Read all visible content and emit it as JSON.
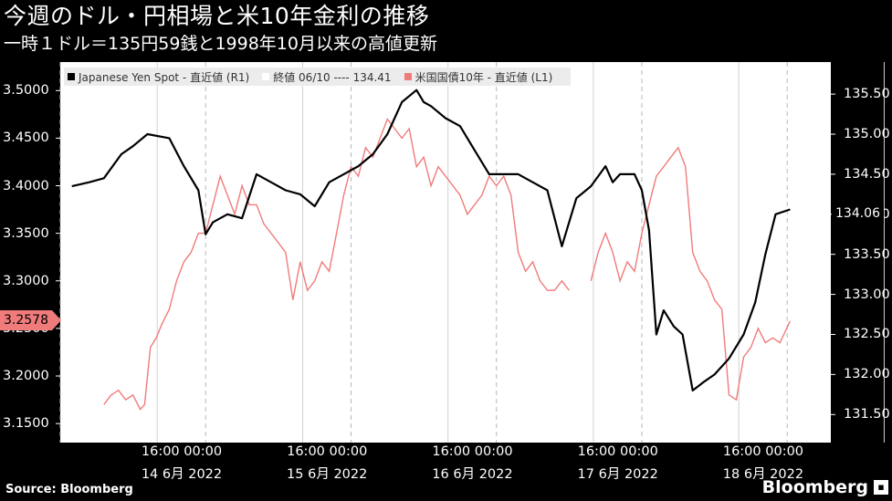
{
  "title": "今週のドル・円相場と米10年金利の推移",
  "subtitle": "一時１ドル＝135円59銭と1998年10月以来の高値更新",
  "legend": {
    "item1": "Japanese Yen Spot - 直近値 (R1)",
    "item2": "終値 06/10 ---- 134.41",
    "item3": "米国国債10年 - 直近値 (L1)"
  },
  "source": "Source:  Bloomberg",
  "brand": "Bloomberg",
  "colors": {
    "yen": "#000000",
    "yield": "#f07b7b",
    "background": "#000000",
    "plot": "#ffffff"
  },
  "chart_data": {
    "type": "line",
    "title": "今週のドル・円相場と米10年金利の推移",
    "left_axis": {
      "ylim": [
        3.13,
        3.53
      ],
      "ticks": [
        "3.5000",
        "3.4500",
        "3.4000",
        "3.3500",
        "3.3000",
        "3.2500",
        "3.2000",
        "3.1500"
      ]
    },
    "right_axis": {
      "ylim": [
        131.15,
        135.9
      ],
      "ticks": [
        "135.50",
        "135.00",
        "134.50",
        "134.00",
        "133.50",
        "133.00",
        "132.50",
        "132.00",
        "131.50"
      ]
    },
    "x_day_labels": [
      {
        "time1": "16:00",
        "time2": "00:00",
        "date": "14 6月 2022"
      },
      {
        "time1": "16:00",
        "time2": "00:00",
        "date": "15 6月 2022"
      },
      {
        "time1": "16:00",
        "time2": "00:00",
        "date": "16 6月 2022"
      },
      {
        "time1": "16:00",
        "time2": "00:00",
        "date": "17 6月 2022"
      },
      {
        "time1": "16:00",
        "time2": "00:00",
        "date": "18 6月 2022"
      }
    ],
    "x_range_days": [
      0,
      5.3
    ],
    "grid": true,
    "legend_position": "top-left",
    "last_values": {
      "yield": "3.2578",
      "yen": "134.06"
    },
    "series": [
      {
        "name": "Japanese Yen Spot - 直近値 (R1)",
        "axis": "right",
        "x": [
          0.08,
          0.2,
          0.3,
          0.42,
          0.5,
          0.6,
          0.75,
          0.85,
          0.95,
          1.0,
          1.05,
          1.15,
          1.25,
          1.35,
          1.45,
          1.55,
          1.65,
          1.75,
          1.85,
          1.95,
          2.05,
          2.15,
          2.25,
          2.35,
          2.45,
          2.5,
          2.55,
          2.65,
          2.75,
          2.85,
          2.95,
          3.05,
          3.15,
          3.25,
          3.35,
          3.45,
          3.55,
          3.65,
          3.75,
          3.8,
          3.85,
          3.95,
          4.0,
          4.05,
          4.1,
          4.15,
          4.22,
          4.28,
          4.35,
          4.42,
          4.5,
          4.6,
          4.7,
          4.78,
          4.85,
          4.92,
          5.02
        ],
        "values": [
          134.35,
          134.4,
          134.45,
          134.75,
          134.85,
          135.0,
          134.95,
          134.6,
          134.3,
          133.75,
          133.9,
          134.0,
          133.95,
          134.5,
          134.4,
          134.3,
          134.25,
          134.1,
          134.4,
          134.5,
          134.6,
          134.75,
          135.0,
          135.4,
          135.55,
          135.4,
          135.35,
          135.2,
          135.1,
          134.8,
          134.5,
          134.5,
          134.5,
          134.4,
          134.3,
          133.6,
          134.2,
          134.35,
          134.6,
          134.4,
          134.5,
          134.5,
          134.3,
          133.8,
          132.5,
          132.8,
          132.6,
          132.5,
          131.8,
          131.9,
          132.0,
          132.2,
          132.5,
          132.9,
          133.5,
          134.0,
          134.06
        ]
      },
      {
        "name": "米国国債10年 - 直近値 (L1)",
        "axis": "left",
        "segments": [
          {
            "x": [
              0.3,
              0.35,
              0.4,
              0.45,
              0.5,
              0.55,
              0.58,
              0.62,
              0.66,
              0.7,
              0.75,
              0.8,
              0.85,
              0.9,
              0.95,
              1.0,
              1.05,
              1.1,
              1.15,
              1.2,
              1.25,
              1.3,
              1.35,
              1.4,
              1.45,
              1.5,
              1.55,
              1.6,
              1.65,
              1.7,
              1.75,
              1.8,
              1.85,
              1.9,
              1.95,
              2.0,
              2.05,
              2.1,
              2.15,
              2.2,
              2.25,
              2.3,
              2.35,
              2.4,
              2.45,
              2.5,
              2.55,
              2.6,
              2.65,
              2.7,
              2.75,
              2.8,
              2.85,
              2.9,
              2.95,
              3.0,
              3.05,
              3.1,
              3.15,
              3.2,
              3.25,
              3.3,
              3.35,
              3.4,
              3.45,
              3.5
            ],
            "values": [
              3.17,
              3.18,
              3.185,
              3.175,
              3.18,
              3.165,
              3.17,
              3.23,
              3.24,
              3.255,
              3.27,
              3.3,
              3.32,
              3.33,
              3.35,
              3.35,
              3.38,
              3.41,
              3.39,
              3.37,
              3.4,
              3.38,
              3.38,
              3.36,
              3.35,
              3.34,
              3.33,
              3.28,
              3.32,
              3.29,
              3.3,
              3.32,
              3.31,
              3.35,
              3.39,
              3.42,
              3.41,
              3.44,
              3.43,
              3.45,
              3.47,
              3.46,
              3.45,
              3.46,
              3.42,
              3.43,
              3.4,
              3.42,
              3.41,
              3.4,
              3.39,
              3.37,
              3.38,
              3.39,
              3.41,
              3.4,
              3.41,
              3.39,
              3.33,
              3.31,
              3.32,
              3.3,
              3.29,
              3.29,
              3.3,
              3.29
            ]
          },
          {
            "x": [
              3.65,
              3.7,
              3.75,
              3.8,
              3.85,
              3.9,
              3.95,
              4.0,
              4.05,
              4.1,
              4.15,
              4.2,
              4.25,
              4.3,
              4.35,
              4.4,
              4.45,
              4.5,
              4.55,
              4.6,
              4.65,
              4.7,
              4.75,
              4.8,
              4.85,
              4.9,
              4.95,
              5.02
            ],
            "values": [
              3.3,
              3.33,
              3.35,
              3.33,
              3.3,
              3.32,
              3.31,
              3.35,
              3.38,
              3.41,
              3.42,
              3.43,
              3.44,
              3.42,
              3.33,
              3.31,
              3.3,
              3.28,
              3.27,
              3.18,
              3.175,
              3.22,
              3.23,
              3.25,
              3.235,
              3.24,
              3.235,
              3.2578
            ]
          }
        ]
      }
    ]
  }
}
